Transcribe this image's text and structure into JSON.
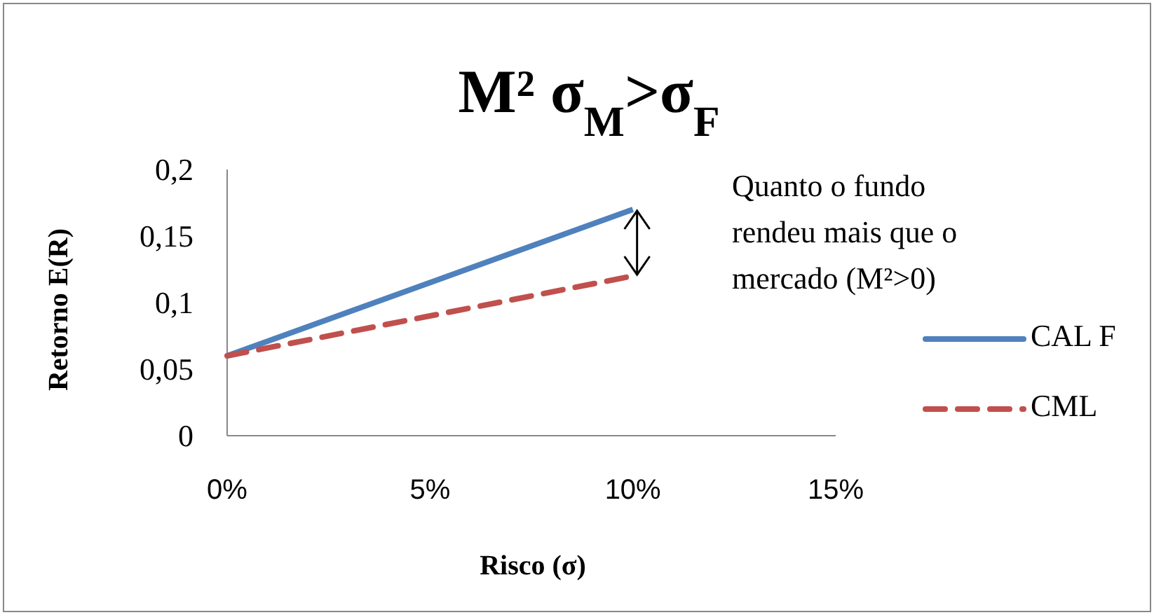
{
  "chart_data": {
    "type": "line",
    "title": "M² σ$_{M}$>σ$_{F}$",
    "xlabel": "Risco (σ)",
    "ylabel": "Retorno E(R)",
    "x": [
      0,
      0.1
    ],
    "series": [
      {
        "name": "CAL F",
        "color": "#4f81bd",
        "values": [
          0.06,
          0.17
        ],
        "line_style": "solid"
      },
      {
        "name": "CML",
        "color": "#c0504d",
        "values": [
          0.06,
          0.12
        ],
        "line_style": "dashed"
      }
    ],
    "xlim": [
      0,
      0.15
    ],
    "xticks": [
      {
        "value": 0,
        "label": "0%"
      },
      {
        "value": 0.05,
        "label": "5%"
      },
      {
        "value": 0.1,
        "label": "10%"
      },
      {
        "value": 0.15,
        "label": "15%"
      }
    ],
    "ylim": [
      0,
      0.2
    ],
    "yticks": [
      0,
      {
        "value": 0.05,
        "label": "0,05"
      },
      {
        "value": 0.1,
        "label": "0,1"
      },
      {
        "value": 0.15,
        "label": "0,15"
      },
      {
        "value": 0.2,
        "label": "0,2"
      }
    ],
    "annotations": [
      "Quanto o fundo rendeu mais que o mercado (M²>0)"
    ],
    "legend": "right",
    "grid": false,
    "marker": "none"
  }
}
